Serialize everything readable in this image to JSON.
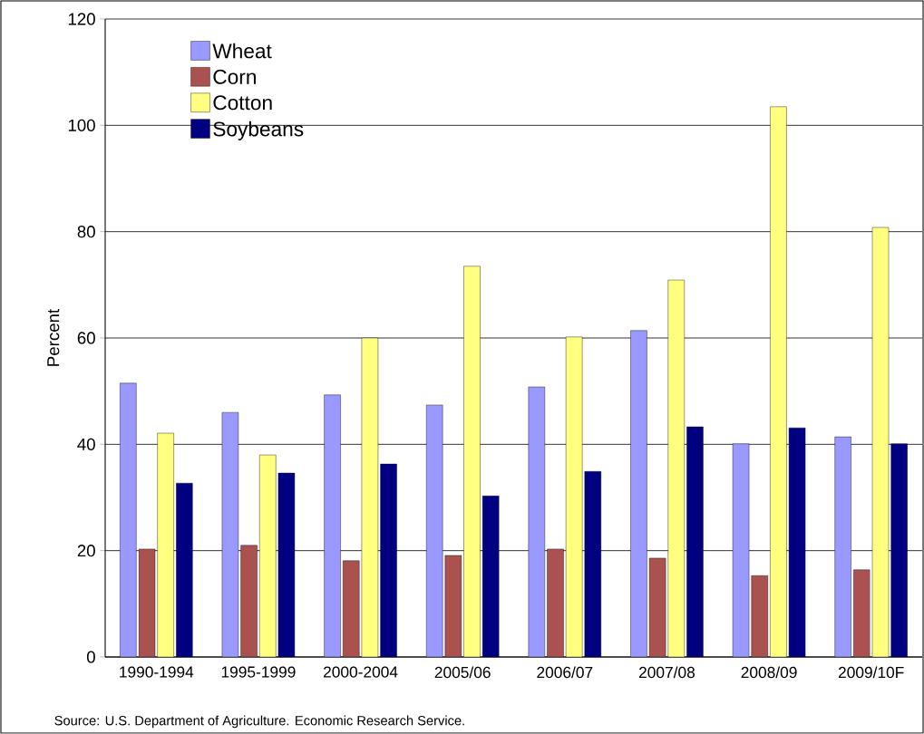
{
  "chart_data": {
    "type": "bar",
    "ylabel": "Percent",
    "categories": [
      "1990-1994",
      "1995-1999",
      "2000-2004",
      "2005/06",
      "2006/07",
      "2007/08",
      "2008/09",
      "2009/10F"
    ],
    "series": [
      {
        "name": "Wheat",
        "color": "#9999ff",
        "values": [
          51.5,
          46.0,
          49.3,
          47.4,
          50.8,
          61.4,
          40.1,
          41.4
        ]
      },
      {
        "name": "Corn",
        "color": "#a9524f",
        "values": [
          20.3,
          21.0,
          18.1,
          19.1,
          20.3,
          18.6,
          15.3,
          16.4
        ]
      },
      {
        "name": "Cotton",
        "color": "#ffff80",
        "values": [
          42.1,
          38.0,
          60.0,
          73.5,
          60.2,
          70.9,
          103.5,
          80.8
        ]
      },
      {
        "name": "Soybeans",
        "color": "#000080",
        "values": [
          32.7,
          34.6,
          36.3,
          30.3,
          34.9,
          43.3,
          43.1,
          40.1
        ]
      }
    ],
    "ylim": [
      0,
      120
    ],
    "yticks": [
      0,
      20,
      40,
      60,
      80,
      100,
      120
    ],
    "grid": "y",
    "legend": "top left",
    "annotations": [
      "Source: U.S. Department of Agriculture.  Economic Research Service."
    ]
  }
}
